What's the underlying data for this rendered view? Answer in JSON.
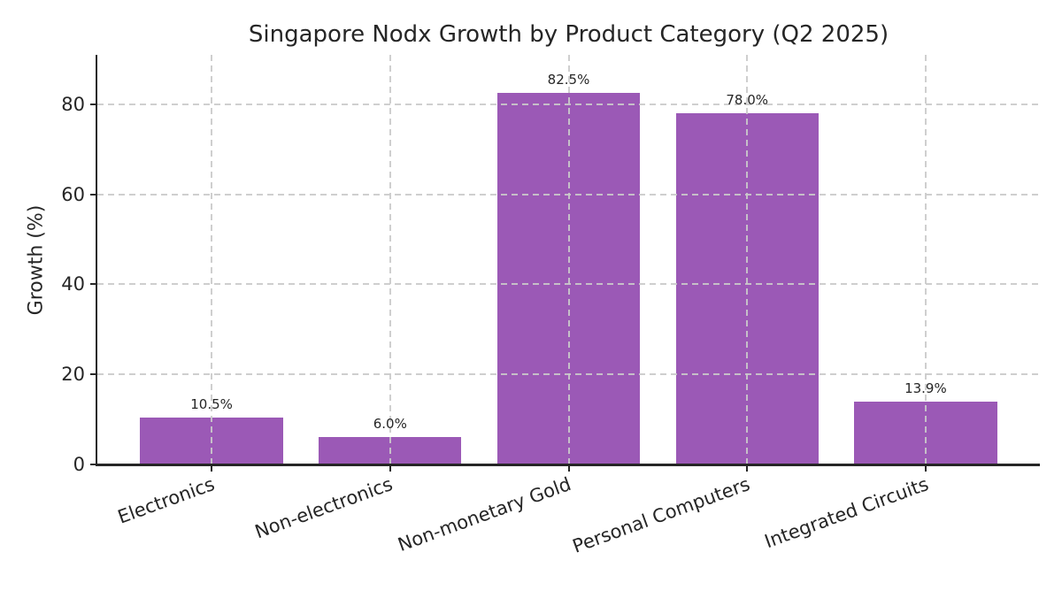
{
  "chart_data": {
    "type": "bar",
    "title": "Singapore Nodx Growth by Product Category (Q2 2025)",
    "ylabel": "Growth (%)",
    "xlabel": "",
    "categories": [
      "Electronics",
      "Non-electronics",
      "Non-monetary Gold",
      "Personal Computers",
      "Integrated Circuits"
    ],
    "values": [
      10.5,
      6.0,
      82.5,
      78.0,
      13.9
    ],
    "bar_labels": [
      "10.5%",
      "6.0%",
      "82.5%",
      "78.0%",
      "13.9%"
    ],
    "yticks": [
      0,
      20,
      40,
      60,
      80
    ],
    "ytick_labels": [
      "0",
      "20",
      "40",
      "60",
      "80"
    ],
    "ylim": [
      0,
      91
    ],
    "grid": "dashed",
    "legend_position": "none",
    "colors": {
      "bar": "#9b59b6",
      "grid": "#cccccc",
      "text": "#262626",
      "axis": "#262626",
      "background": "#ffffff"
    }
  }
}
